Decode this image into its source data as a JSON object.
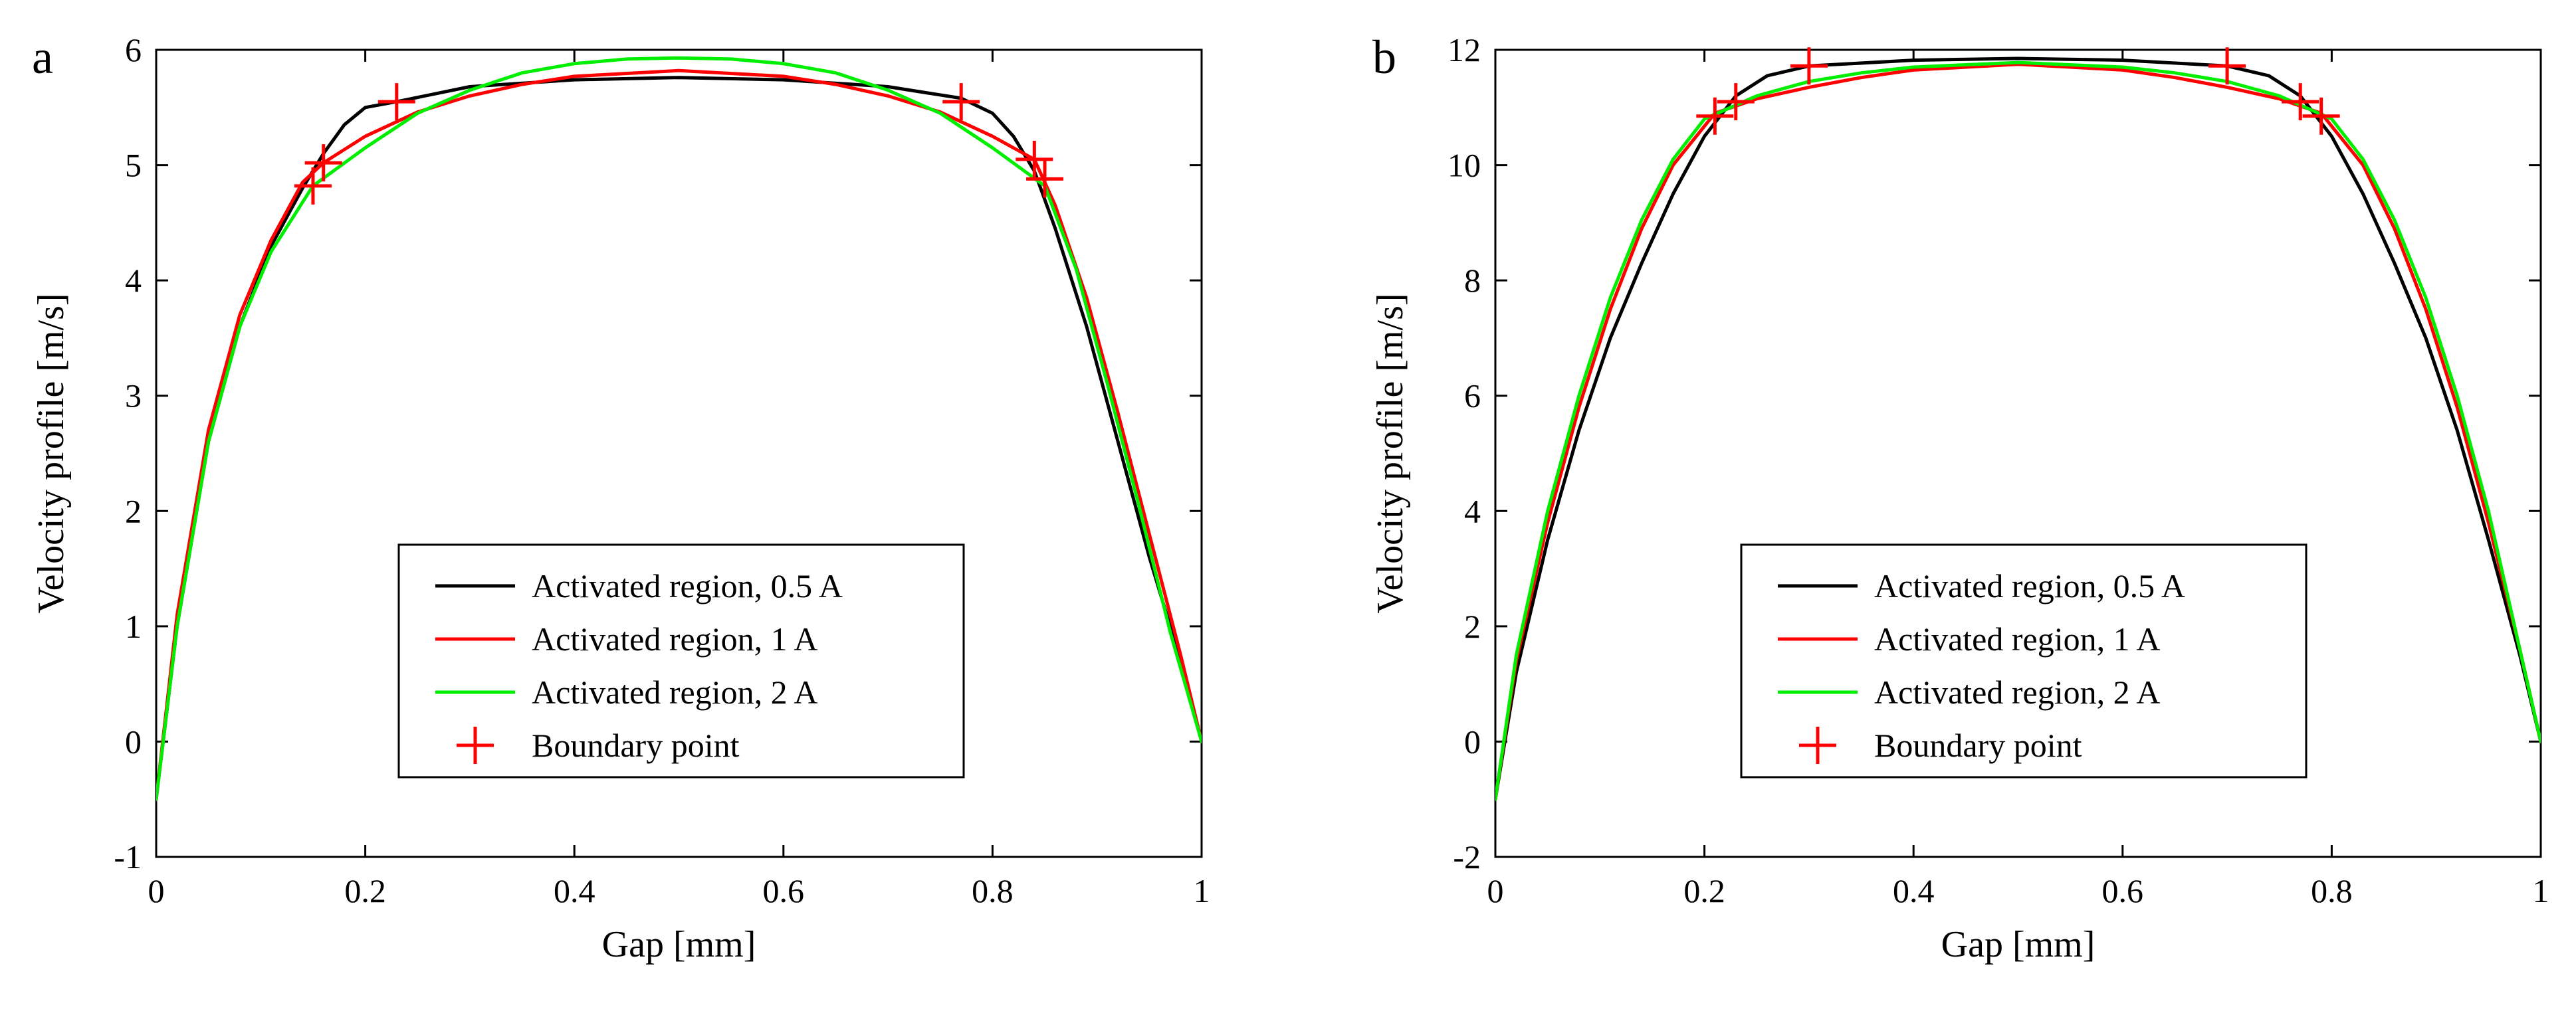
{
  "chart_data": [
    {
      "type": "line",
      "panel_label": "a",
      "xlabel": "Gap [mm]",
      "ylabel": "Velocity profile [m/s]",
      "xlim": [
        0,
        1
      ],
      "ylim": [
        -1,
        6
      ],
      "xticks": [
        0,
        0.2,
        0.4,
        0.6,
        0.8,
        1
      ],
      "xtick_labels": [
        "0",
        "0.2",
        "0.4",
        "0.6",
        "0.8",
        "1"
      ],
      "yticks": [
        -1,
        0,
        1,
        2,
        3,
        4,
        5,
        6
      ],
      "ytick_labels": [
        "-1",
        "0",
        "1",
        "2",
        "3",
        "4",
        "5",
        "6"
      ],
      "legend_position": "lower-center",
      "series": [
        {
          "name": "Activated region, 0.5 A",
          "color": "#000000",
          "x": [
            0,
            0.02,
            0.05,
            0.08,
            0.11,
            0.14,
            0.16,
            0.18,
            0.2,
            0.23,
            0.3,
            0.4,
            0.5,
            0.6,
            0.7,
            0.77,
            0.8,
            0.82,
            0.84,
            0.86,
            0.89,
            0.92,
            0.95,
            0.98,
            1
          ],
          "y": [
            -0.5,
            1.0,
            2.6,
            3.6,
            4.3,
            4.8,
            5.1,
            5.35,
            5.5,
            5.55,
            5.68,
            5.74,
            5.76,
            5.74,
            5.68,
            5.58,
            5.45,
            5.25,
            4.95,
            4.45,
            3.6,
            2.6,
            1.6,
            0.7,
            0.0
          ]
        },
        {
          "name": "Activated region, 1 A",
          "color": "#ff0000",
          "x": [
            0,
            0.02,
            0.05,
            0.08,
            0.11,
            0.14,
            0.16,
            0.2,
            0.25,
            0.3,
            0.35,
            0.4,
            0.5,
            0.6,
            0.65,
            0.7,
            0.75,
            0.8,
            0.84,
            0.86,
            0.89,
            0.92,
            0.95,
            0.98,
            1
          ],
          "y": [
            -0.5,
            1.1,
            2.7,
            3.7,
            4.35,
            4.85,
            5.02,
            5.25,
            5.46,
            5.6,
            5.7,
            5.77,
            5.82,
            5.77,
            5.7,
            5.6,
            5.46,
            5.25,
            5.05,
            4.65,
            3.85,
            2.85,
            1.8,
            0.75,
            0.0
          ]
        },
        {
          "name": "Activated region, 2 A",
          "color": "#00ee00",
          "x": [
            0,
            0.02,
            0.05,
            0.08,
            0.11,
            0.15,
            0.2,
            0.25,
            0.3,
            0.35,
            0.4,
            0.45,
            0.5,
            0.55,
            0.6,
            0.65,
            0.7,
            0.75,
            0.8,
            0.85,
            0.88,
            0.91,
            0.94,
            0.97,
            1
          ],
          "y": [
            -0.5,
            1.0,
            2.6,
            3.6,
            4.25,
            4.82,
            5.15,
            5.45,
            5.65,
            5.8,
            5.88,
            5.92,
            5.93,
            5.92,
            5.88,
            5.8,
            5.65,
            5.45,
            5.15,
            4.82,
            4.1,
            3.1,
            2.05,
            0.95,
            0.0
          ]
        }
      ],
      "boundary_points": {
        "name": "Boundary point",
        "color": "#ff0000",
        "x": [
          0.15,
          0.16,
          0.23,
          0.77,
          0.84,
          0.85
        ],
        "y": [
          4.82,
          5.02,
          5.55,
          5.55,
          5.05,
          4.88
        ]
      }
    },
    {
      "type": "line",
      "panel_label": "b",
      "xlabel": "Gap [mm]",
      "ylabel": "Velocity profile [m/s]",
      "xlim": [
        0,
        1
      ],
      "ylim": [
        -2,
        12
      ],
      "xticks": [
        0,
        0.2,
        0.4,
        0.6,
        0.8,
        1
      ],
      "xtick_labels": [
        "0",
        "0.2",
        "0.4",
        "0.6",
        "0.8",
        "1"
      ],
      "yticks": [
        -2,
        0,
        2,
        4,
        6,
        8,
        10,
        12
      ],
      "ytick_labels": [
        "-2",
        "0",
        "2",
        "4",
        "6",
        "8",
        "10",
        "12"
      ],
      "legend_position": "lower-center",
      "series": [
        {
          "name": "Activated region, 0.5 A",
          "color": "#000000",
          "x": [
            0,
            0.02,
            0.05,
            0.08,
            0.11,
            0.14,
            0.17,
            0.2,
            0.23,
            0.26,
            0.3,
            0.4,
            0.5,
            0.6,
            0.7,
            0.74,
            0.77,
            0.8,
            0.83,
            0.86,
            0.89,
            0.92,
            0.95,
            0.98,
            1
          ],
          "y": [
            -1.0,
            1.2,
            3.5,
            5.4,
            7.0,
            8.3,
            9.5,
            10.5,
            11.2,
            11.55,
            11.72,
            11.82,
            11.85,
            11.82,
            11.72,
            11.55,
            11.2,
            10.5,
            9.5,
            8.3,
            7.0,
            5.4,
            3.5,
            1.5,
            0.0
          ]
        },
        {
          "name": "Activated region, 1 A",
          "color": "#ff0000",
          "x": [
            0,
            0.02,
            0.05,
            0.08,
            0.11,
            0.14,
            0.17,
            0.21,
            0.25,
            0.3,
            0.35,
            0.4,
            0.5,
            0.6,
            0.65,
            0.7,
            0.75,
            0.79,
            0.83,
            0.86,
            0.89,
            0.92,
            0.95,
            0.98,
            1
          ],
          "y": [
            -1.0,
            1.4,
            3.8,
            5.8,
            7.5,
            8.9,
            10.0,
            10.9,
            11.15,
            11.35,
            11.52,
            11.65,
            11.75,
            11.65,
            11.52,
            11.35,
            11.15,
            10.9,
            10.0,
            8.9,
            7.5,
            5.8,
            3.8,
            1.6,
            0.0
          ]
        },
        {
          "name": "Activated region, 2 A",
          "color": "#00ee00",
          "x": [
            0,
            0.02,
            0.05,
            0.08,
            0.11,
            0.14,
            0.17,
            0.2,
            0.25,
            0.3,
            0.35,
            0.4,
            0.5,
            0.6,
            0.65,
            0.7,
            0.75,
            0.8,
            0.83,
            0.86,
            0.89,
            0.92,
            0.95,
            0.98,
            1
          ],
          "y": [
            -1.0,
            1.5,
            4.0,
            6.0,
            7.7,
            9.05,
            10.1,
            10.8,
            11.2,
            11.45,
            11.6,
            11.7,
            11.78,
            11.7,
            11.6,
            11.45,
            11.2,
            10.8,
            10.1,
            9.05,
            7.7,
            6.0,
            4.0,
            1.6,
            0.0
          ]
        }
      ],
      "boundary_points": {
        "name": "Boundary point",
        "color": "#ff0000",
        "x": [
          0.21,
          0.23,
          0.3,
          0.7,
          0.77,
          0.79
        ],
        "y": [
          10.85,
          11.1,
          11.72,
          11.72,
          11.1,
          10.85
        ]
      }
    }
  ]
}
